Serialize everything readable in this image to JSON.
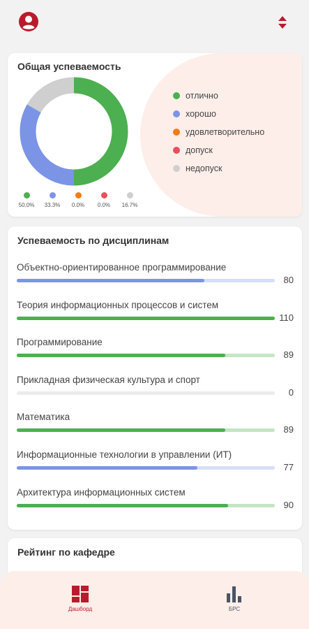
{
  "colors": {
    "accent": "#b81c2c",
    "excellent": "#4caf50",
    "good": "#7b94e6",
    "satisfactory": "#f07c18",
    "admission": "#e8505b",
    "not_admitted": "#cfcfcf",
    "nav_inactive": "#4a5565"
  },
  "header": {
    "profile_icon": "account-circle-icon",
    "sort_icon": "sort-arrows-icon"
  },
  "overall": {
    "title": "Общая успеваемость",
    "legend": [
      {
        "label": "отлично",
        "color": "#4caf50"
      },
      {
        "label": "хорошо",
        "color": "#7b94e6"
      },
      {
        "label": "удовлетворительно",
        "color": "#f07c18"
      },
      {
        "label": "допуск",
        "color": "#e8505b"
      },
      {
        "label": "недопуск",
        "color": "#cfcfcf"
      }
    ],
    "percentages": [
      "50.0%",
      "33.3%",
      "0.0%",
      "0.0%",
      "16.7%"
    ]
  },
  "chart_data": {
    "type": "pie",
    "categories": [
      "отлично",
      "хорошо",
      "удовлетворительно",
      "допуск",
      "недопуск"
    ],
    "values": [
      50.0,
      33.3,
      0.0,
      0.0,
      16.7
    ],
    "colors": [
      "#4caf50",
      "#7b94e6",
      "#f07c18",
      "#e8505b",
      "#cfcfcf"
    ],
    "title": "Общая успеваемость",
    "donut": true
  },
  "subjects": {
    "title": "Успеваемость по дисциплинам",
    "max": 110,
    "items": [
      {
        "name": "Объектно-ориентированное программирование",
        "value": "80",
        "color": "#7b94e6",
        "track": "#d6defa"
      },
      {
        "name": "Теория информационных процессов и систем",
        "value": "110",
        "color": "#4caf50",
        "track": "#c3e6c4"
      },
      {
        "name": "Программирование",
        "value": "89",
        "color": "#4caf50",
        "track": "#c3e6c4"
      },
      {
        "name": "Прикладная физическая культура и спорт",
        "value": "0",
        "color": "#cfcfcf",
        "track": "#ececec"
      },
      {
        "name": "Математика",
        "value": "89",
        "color": "#4caf50",
        "track": "#c3e6c4"
      },
      {
        "name": "Информационные технологии в управлении (ИТ)",
        "value": "77",
        "color": "#7b94e6",
        "track": "#d6defa"
      },
      {
        "name": "Архитектура информационных систем",
        "value": "90",
        "color": "#4caf50",
        "track": "#c3e6c4"
      }
    ]
  },
  "rating": {
    "title": "Рейтинг по кафедре"
  },
  "nav": {
    "dashboard_label": "Дашборд",
    "brs_label": "БРС"
  }
}
